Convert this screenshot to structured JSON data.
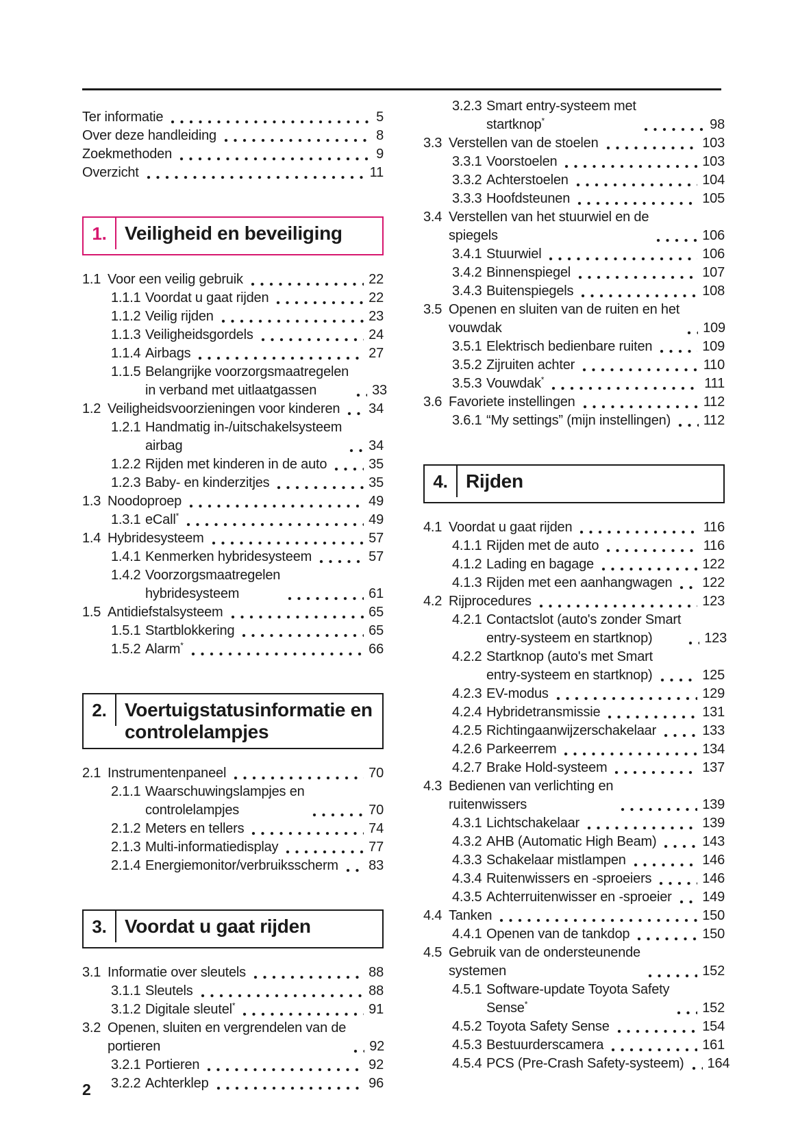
{
  "page": {
    "number": "2",
    "accent_color": "#d6166e",
    "ink_color": "#1a1a1a"
  },
  "left_column": [
    {
      "type": "entries",
      "items": [
        {
          "level": 0,
          "label": "Ter informatie",
          "page": "5"
        },
        {
          "level": 0,
          "label": "Over deze handleiding",
          "page": "8"
        },
        {
          "level": 0,
          "label": "Zoekmethoden",
          "page": "9"
        },
        {
          "level": 0,
          "label": "Overzicht",
          "page": "11"
        }
      ]
    },
    {
      "type": "section",
      "num": "1.",
      "title": "Veiligheid en beveiliging",
      "accent": true
    },
    {
      "type": "entries",
      "items": [
        {
          "level": 1,
          "num": "1.1",
          "label": "Voor een veilig gebruik",
          "page": "22"
        },
        {
          "level": 2,
          "num": "1.1.1",
          "label": "Voordat u gaat rijden",
          "page": "22"
        },
        {
          "level": 2,
          "num": "1.1.2",
          "label": "Veilig rijden",
          "page": "23"
        },
        {
          "level": 2,
          "num": "1.1.3",
          "label": "Veiligheidsgordels",
          "page": "24"
        },
        {
          "level": 2,
          "num": "1.1.4",
          "label": "Airbags",
          "page": "27"
        },
        {
          "level": 2,
          "num": "1.1.5",
          "label": "Belangrijke voorzorgsmaatregelen\nin verband met uitlaatgassen",
          "page": "33"
        },
        {
          "level": 1,
          "num": "1.2",
          "label": "Veiligheidsvoorzieningen voor kinderen",
          "page": "34"
        },
        {
          "level": 2,
          "num": "1.2.1",
          "label": "Handmatig in-/uitschakelsysteem\nairbag",
          "page": "34"
        },
        {
          "level": 2,
          "num": "1.2.2",
          "label": "Rijden met kinderen in de auto",
          "page": "35"
        },
        {
          "level": 2,
          "num": "1.2.3",
          "label": "Baby- en kinderzitjes",
          "page": "35"
        },
        {
          "level": 1,
          "num": "1.3",
          "label": "Noodoproep",
          "page": "49"
        },
        {
          "level": 2,
          "num": "1.3.1",
          "label": "eCall*",
          "page": "49"
        },
        {
          "level": 1,
          "num": "1.4",
          "label": "Hybridesysteem",
          "page": "57"
        },
        {
          "level": 2,
          "num": "1.4.1",
          "label": "Kenmerken hybridesysteem",
          "page": "57"
        },
        {
          "level": 2,
          "num": "1.4.2",
          "label": "Voorzorgsmaatregelen\nhybridesysteem",
          "page": "61"
        },
        {
          "level": 1,
          "num": "1.5",
          "label": "Antidiefstalsysteem",
          "page": "65"
        },
        {
          "level": 2,
          "num": "1.5.1",
          "label": "Startblokkering",
          "page": "65"
        },
        {
          "level": 2,
          "num": "1.5.2",
          "label": "Alarm*",
          "page": "66"
        }
      ]
    },
    {
      "type": "section",
      "num": "2.",
      "title": "Voertuigstatusinformatie en\ncontrolelampjes",
      "accent": false
    },
    {
      "type": "entries",
      "items": [
        {
          "level": 1,
          "num": "2.1",
          "label": "Instrumentenpaneel",
          "page": "70"
        },
        {
          "level": 2,
          "num": "2.1.1",
          "label": "Waarschuwingslampjes en\ncontrolelampjes",
          "page": "70"
        },
        {
          "level": 2,
          "num": "2.1.2",
          "label": "Meters en tellers",
          "page": "74"
        },
        {
          "level": 2,
          "num": "2.1.3",
          "label": "Multi-informatiedisplay",
          "page": "77"
        },
        {
          "level": 2,
          "num": "2.1.4",
          "label": "Energiemonitor/verbruiksscherm",
          "page": "83"
        }
      ]
    },
    {
      "type": "section",
      "num": "3.",
      "title": "Voordat u gaat rijden",
      "accent": false
    },
    {
      "type": "entries",
      "items": [
        {
          "level": 1,
          "num": "3.1",
          "label": "Informatie over sleutels",
          "page": "88"
        },
        {
          "level": 2,
          "num": "3.1.1",
          "label": "Sleutels",
          "page": "88"
        },
        {
          "level": 2,
          "num": "3.1.2",
          "label": "Digitale sleutel*",
          "page": "91"
        },
        {
          "level": 1,
          "num": "3.2",
          "label": "Openen, sluiten en vergrendelen van de\nportieren",
          "page": "92"
        },
        {
          "level": 2,
          "num": "3.2.1",
          "label": "Portieren",
          "page": "92"
        },
        {
          "level": 2,
          "num": "3.2.2",
          "label": "Achterklep",
          "page": "96"
        }
      ]
    }
  ],
  "right_column": [
    {
      "type": "entries",
      "items": [
        {
          "level": 2,
          "num": "3.2.3",
          "label": "Smart entry-systeem met\nstartknop*",
          "page": "98"
        },
        {
          "level": 1,
          "num": "3.3",
          "label": "Verstellen van de stoelen",
          "page": "103"
        },
        {
          "level": 2,
          "num": "3.3.1",
          "label": "Voorstoelen",
          "page": "103"
        },
        {
          "level": 2,
          "num": "3.3.2",
          "label": "Achterstoelen",
          "page": "104"
        },
        {
          "level": 2,
          "num": "3.3.3",
          "label": "Hoofdsteunen",
          "page": "105"
        },
        {
          "level": 1,
          "num": "3.4",
          "label": "Verstellen van het stuurwiel en de\nspiegels",
          "page": "106"
        },
        {
          "level": 2,
          "num": "3.4.1",
          "label": "Stuurwiel",
          "page": "106"
        },
        {
          "level": 2,
          "num": "3.4.2",
          "label": "Binnenspiegel",
          "page": "107"
        },
        {
          "level": 2,
          "num": "3.4.3",
          "label": "Buitenspiegels",
          "page": "108"
        },
        {
          "level": 1,
          "num": "3.5",
          "label": "Openen en sluiten van de ruiten en het\nvouwdak",
          "page": "109"
        },
        {
          "level": 2,
          "num": "3.5.1",
          "label": "Elektrisch bedienbare ruiten",
          "page": "109"
        },
        {
          "level": 2,
          "num": "3.5.2",
          "label": "Zijruiten achter",
          "page": "110"
        },
        {
          "level": 2,
          "num": "3.5.3",
          "label": "Vouwdak*",
          "page": "111"
        },
        {
          "level": 1,
          "num": "3.6",
          "label": "Favoriete instellingen",
          "page": "112"
        },
        {
          "level": 2,
          "num": "3.6.1",
          "label": "“My settings” (mijn instellingen)",
          "page": "112"
        }
      ]
    },
    {
      "type": "section",
      "num": "4.",
      "title": "Rijden",
      "accent": false
    },
    {
      "type": "entries",
      "items": [
        {
          "level": 1,
          "num": "4.1",
          "label": "Voordat u gaat rijden",
          "page": "116"
        },
        {
          "level": 2,
          "num": "4.1.1",
          "label": "Rijden met de auto",
          "page": "116"
        },
        {
          "level": 2,
          "num": "4.1.2",
          "label": "Lading en bagage",
          "page": "122"
        },
        {
          "level": 2,
          "num": "4.1.3",
          "label": "Rijden met een aanhangwagen",
          "page": "122"
        },
        {
          "level": 1,
          "num": "4.2",
          "label": "Rijprocedures",
          "page": "123"
        },
        {
          "level": 2,
          "num": "4.2.1",
          "label": "Contactslot (auto's zonder Smart\nentry-systeem en startknop)",
          "page": "123"
        },
        {
          "level": 2,
          "num": "4.2.2",
          "label": "Startknop (auto's met Smart\nentry-systeem en startknop)",
          "page": "125"
        },
        {
          "level": 2,
          "num": "4.2.3",
          "label": "EV-modus",
          "page": "129"
        },
        {
          "level": 2,
          "num": "4.2.4",
          "label": "Hybridetransmissie",
          "page": "131"
        },
        {
          "level": 2,
          "num": "4.2.5",
          "label": "Richtingaanwijzerschakelaar",
          "page": "133"
        },
        {
          "level": 2,
          "num": "4.2.6",
          "label": "Parkeerrem",
          "page": "134"
        },
        {
          "level": 2,
          "num": "4.2.7",
          "label": "Brake Hold-systeem",
          "page": "137"
        },
        {
          "level": 1,
          "num": "4.3",
          "label": "Bedienen van verlichting en\nruitenwissers",
          "page": "139"
        },
        {
          "level": 2,
          "num": "4.3.1",
          "label": "Lichtschakelaar",
          "page": "139"
        },
        {
          "level": 2,
          "num": "4.3.2",
          "label": "AHB (Automatic High Beam)",
          "page": "143"
        },
        {
          "level": 2,
          "num": "4.3.3",
          "label": "Schakelaar mistlampen",
          "page": "146"
        },
        {
          "level": 2,
          "num": "4.3.4",
          "label": "Ruitenwissers en -sproeiers",
          "page": "146"
        },
        {
          "level": 2,
          "num": "4.3.5",
          "label": "Achterruitenwisser en -sproeier",
          "page": "149"
        },
        {
          "level": 1,
          "num": "4.4",
          "label": "Tanken",
          "page": "150"
        },
        {
          "level": 2,
          "num": "4.4.1",
          "label": "Openen van de tankdop",
          "page": "150"
        },
        {
          "level": 1,
          "num": "4.5",
          "label": "Gebruik van de ondersteunende\nsystemen",
          "page": "152"
        },
        {
          "level": 2,
          "num": "4.5.1",
          "label": "Software-update Toyota Safety\nSense*",
          "page": "152"
        },
        {
          "level": 2,
          "num": "4.5.2",
          "label": "Toyota Safety Sense",
          "page": "154"
        },
        {
          "level": 2,
          "num": "4.5.3",
          "label": "Bestuurderscamera",
          "page": "161"
        },
        {
          "level": 2,
          "num": "4.5.4",
          "label": "PCS (Pre-Crash Safety-systeem)",
          "page": "164"
        }
      ]
    }
  ]
}
